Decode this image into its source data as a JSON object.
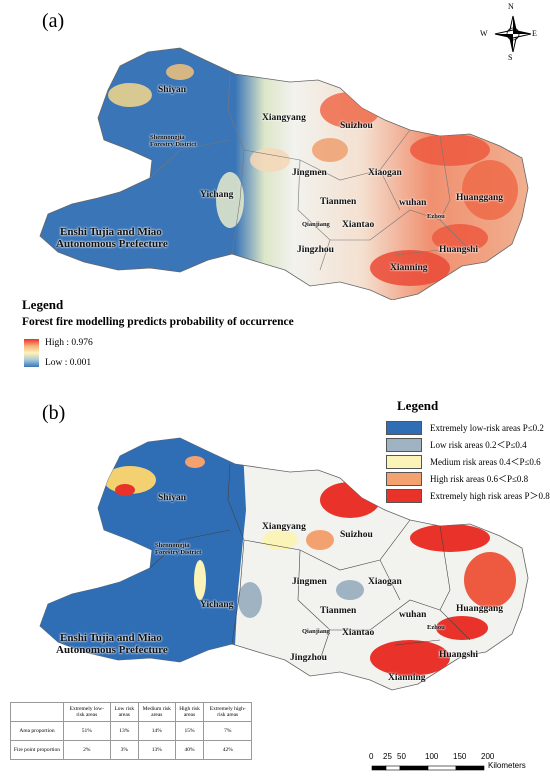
{
  "panel_a": {
    "label": "(a)",
    "places": {
      "shiyan": "Shiyan",
      "shennongjia_1": "Shennongjia",
      "shennongjia_2": "Forestry District",
      "xiangyang": "Xiangyang",
      "suizhou": "Suizhou",
      "jingmen": "Jingmen",
      "xiaogan": "Xiaogan",
      "yichang": "Yichang",
      "tianmen": "Tianmen",
      "wuhan": "wuhan",
      "huanggang": "Huanggang",
      "ezhou": "Ezhou",
      "qianjiang": "Qianjiang",
      "xiantao": "Xiantao",
      "enshi_1": "Enshi Tujia and Miao",
      "enshi_2": "Autonomous Prefecture",
      "jingzhou": "Jingzhou",
      "huangshi": "Huangshi",
      "xianning": "Xianning"
    },
    "legend": {
      "title": "Legend",
      "subtitle": "Forest fire modelling predicts probability of occurrence",
      "high": "High : 0.976",
      "low": "Low : 0.001"
    }
  },
  "compass": {
    "n": "N",
    "s": "S",
    "e": "E",
    "w": "W"
  },
  "panel_b": {
    "label": "(b)",
    "places": {
      "shiyan": "Shiyan",
      "shennongjia_1": "Shennongjia",
      "shennongjia_2": "Forestry District",
      "xiangyang": "Xiangyang",
      "suizhou": "Suizhou",
      "jingmen": "Jingmen",
      "xiaogan": "Xiaogan",
      "yichang": "Yichang",
      "tianmen": "Tianmen",
      "wuhan": "wuhan",
      "huanggang": "Huanggang",
      "ezhou": "Ezhou",
      "qianjiang": "Qianjiang",
      "xiantao": "Xiantao",
      "enshi_1": "Enshi Tujia and Miao",
      "enshi_2": "Autonomous Prefecture",
      "jingzhou": "Jingzhou",
      "huangshi": "Huangshi",
      "xianning": "Xianning"
    },
    "legend": {
      "title": "Legend",
      "items": [
        {
          "label": "Extremely low-risk areas P≤0.2",
          "color": "#2f6db5"
        },
        {
          "label": "Low risk areas 0.2＜P≤0.4",
          "color": "#9fb3c2"
        },
        {
          "label": "Medium risk areas 0.4＜P≤0.6",
          "color": "#fbf4b8"
        },
        {
          "label": "High risk areas 0.6＜P≤0.8",
          "color": "#f3a16e"
        },
        {
          "label": "Extremely high risk areas P＞0.8",
          "color": "#e8322a"
        }
      ]
    }
  },
  "stats_table": {
    "headers": [
      "",
      "Extremely low-risk areas",
      "Low risk areas",
      "Medium risk areas",
      "High risk areas",
      "Extremely high-risk areas"
    ],
    "rows": [
      [
        "Area proportion",
        "51%",
        "13%",
        "14%",
        "15%",
        "7%"
      ],
      [
        "Fire point proportion",
        "2%",
        "3%",
        "13%",
        "40%",
        "42%"
      ]
    ]
  },
  "scale_bar": {
    "ticks": [
      "0",
      "25",
      "50",
      "100",
      "150",
      "200"
    ],
    "tick_values": [
      0,
      25,
      50,
      100,
      150,
      200
    ],
    "unit": "Kilometers"
  },
  "colors": {
    "low_risk_blue": "#2f6db5",
    "medium_white": "#f2f2ee",
    "high_red": "#e8322a",
    "orange": "#f3a16e",
    "yellow": "#fbf4b8",
    "boundary": "#555555"
  }
}
